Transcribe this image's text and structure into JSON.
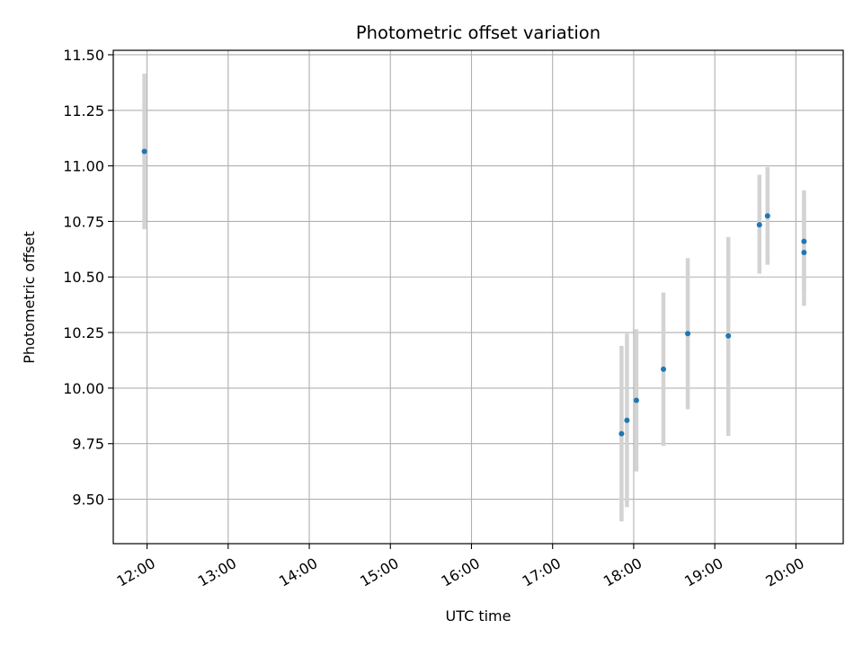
{
  "chart_data": {
    "type": "scatter",
    "title": "Photometric offset variation",
    "xlabel": "UTC time",
    "ylabel": "Photometric offset",
    "x_axis_type": "time",
    "xlim": [
      "11:35",
      "20:35"
    ],
    "ylim": [
      9.3,
      11.52
    ],
    "x_ticks": [
      "12:00",
      "13:00",
      "14:00",
      "15:00",
      "16:00",
      "17:00",
      "18:00",
      "19:00",
      "20:00"
    ],
    "y_ticks": [
      "9.50",
      "9.75",
      "10.00",
      "10.25",
      "10.50",
      "10.75",
      "11.00",
      "11.25",
      "11.50"
    ],
    "grid": true,
    "legend": false,
    "colors": {
      "point": "#1f77b4",
      "errorbar": "#d3d3d3",
      "grid": "#b0b0b0"
    },
    "series": [
      {
        "points": [
          {
            "x": "11:58",
            "y": 11.065,
            "y_low": 10.715,
            "y_high": 11.415
          },
          {
            "x": "17:51",
            "y": 9.795,
            "y_low": 9.4,
            "y_high": 10.19
          },
          {
            "x": "17:55",
            "y": 9.855,
            "y_low": 9.465,
            "y_high": 10.245
          },
          {
            "x": "18:02",
            "y": 9.945,
            "y_low": 9.625,
            "y_high": 10.265
          },
          {
            "x": "18:22",
            "y": 10.085,
            "y_low": 9.74,
            "y_high": 10.43
          },
          {
            "x": "18:40",
            "y": 10.245,
            "y_low": 9.905,
            "y_high": 10.585
          },
          {
            "x": "19:10",
            "y": 10.235,
            "y_low": 9.785,
            "y_high": 10.68
          },
          {
            "x": "19:33",
            "y": 10.735,
            "y_low": 10.515,
            "y_high": 10.96
          },
          {
            "x": "19:39",
            "y": 10.775,
            "y_low": 10.555,
            "y_high": 10.995
          },
          {
            "x": "20:06",
            "y": 10.66,
            "y_low": 10.43,
            "y_high": 10.89
          },
          {
            "x": "20:06",
            "y": 10.61,
            "y_low": 10.37,
            "y_high": 10.85
          }
        ]
      }
    ]
  }
}
